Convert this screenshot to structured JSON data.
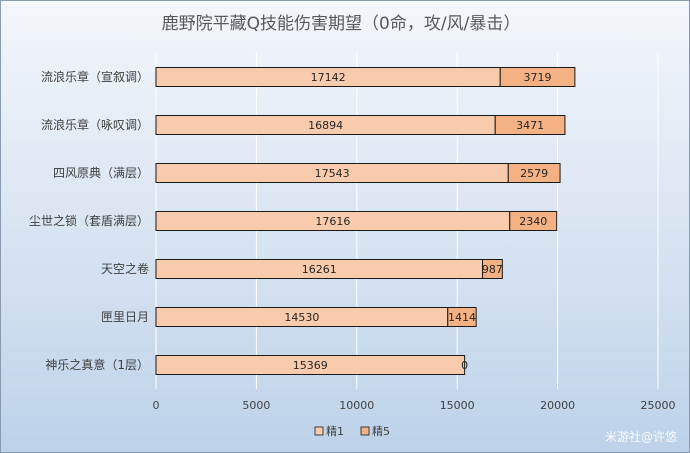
{
  "chart_data": {
    "type": "bar",
    "orientation": "horizontal",
    "stacked": true,
    "title": "鹿野院平藏Q技能伤害期望（0命，攻/风/暴击）",
    "categories": [
      "流浪乐章（宣叙调）",
      "流浪乐章（咏叹调）",
      "四风原典（满层）",
      "尘世之锁（套盾满层）",
      "天空之卷",
      "匣里日月",
      "神乐之真意（1层）"
    ],
    "series": [
      {
        "name": "精1",
        "values": [
          17142,
          16894,
          17543,
          17616,
          16261,
          14530,
          15369
        ],
        "color": "#f8cbad"
      },
      {
        "name": "精5",
        "values": [
          3719,
          3471,
          2579,
          2340,
          987,
          1414,
          0
        ],
        "color": "#f4b183"
      }
    ],
    "xlim": [
      0,
      25000
    ],
    "xticks": [
      0,
      5000,
      10000,
      15000,
      20000,
      25000
    ],
    "grid": "vertical",
    "legend": "bottom"
  },
  "watermark": "米游社@许悠"
}
